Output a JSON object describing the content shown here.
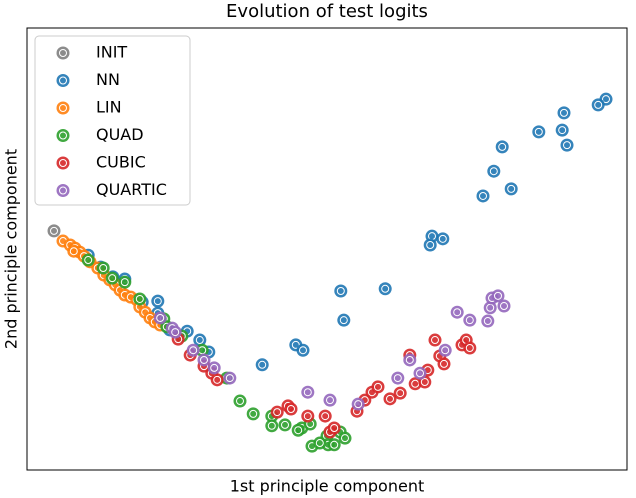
{
  "chart_data": {
    "type": "scatter",
    "title": "Evolution of test logits",
    "x_label": "1st principle component",
    "y_label": "2nd principle component",
    "xlim": [
      0,
      100
    ],
    "ylim": [
      0,
      100
    ],
    "legend": "upper left",
    "series": [
      {
        "name": "INIT",
        "color": "#7f7f7f",
        "x": [
          4.5
        ],
        "values": [
          54.1
        ]
      },
      {
        "name": "NN",
        "color": "#1f77b4",
        "x": [
          96.5,
          95.2,
          89.5,
          85.3,
          89.2,
          90.0,
          79.2,
          77.8,
          80.7,
          76.0,
          67.5,
          69.3,
          67.2,
          52.3,
          59.7,
          52.8,
          44.8,
          46.0,
          39.2,
          28.8,
          30.3,
          26.7,
          23.8,
          21.8,
          21.8,
          19.2,
          16.3,
          14.3,
          12.3,
          10.2
        ],
        "values": [
          83.9,
          82.6,
          80.8,
          76.5,
          76.9,
          73.5,
          73.1,
          67.6,
          63.6,
          62.0,
          52.9,
          52.3,
          50.9,
          40.5,
          41.0,
          33.9,
          28.3,
          27.1,
          23.8,
          29.4,
          26.7,
          31.4,
          31.7,
          38.2,
          35.5,
          38.0,
          43.2,
          43.7,
          45.9,
          48.6
        ]
      },
      {
        "name": "LIN",
        "color": "#ff7f0e",
        "x": [
          6.0,
          7.2,
          8.0,
          8.8,
          9.5,
          7.8,
          10.5,
          11.8,
          12.8,
          13.8,
          14.7,
          15.5,
          16.3,
          17.3,
          18.3,
          18.8,
          19.7,
          20.5,
          21.3,
          22.2
        ],
        "values": [
          51.8,
          50.9,
          50.2,
          49.3,
          48.4,
          49.5,
          47.1,
          45.7,
          44.1,
          43.0,
          41.9,
          40.7,
          39.6,
          39.1,
          38.5,
          36.9,
          35.7,
          34.4,
          33.5,
          32.8
        ]
      },
      {
        "name": "QUAD",
        "color": "#2ca02c",
        "x": [
          10.2,
          12.7,
          14.2,
          16.3,
          18.8,
          22.8,
          23.3,
          25.8,
          29.2,
          33.3,
          35.5,
          37.7,
          40.8,
          40.8,
          43.0,
          45.8,
          45.2,
          47.2,
          50.0,
          52.2,
          53.0,
          50.2,
          47.5,
          51.2,
          48.8
        ],
        "values": [
          47.5,
          45.7,
          43.4,
          42.5,
          38.7,
          34.2,
          32.4,
          30.3,
          27.1,
          20.8,
          15.6,
          12.7,
          12.2,
          10.0,
          10.2,
          9.5,
          9.0,
          10.4,
          7.7,
          8.6,
          7.2,
          5.7,
          5.4,
          5.7,
          6.1
        ]
      },
      {
        "name": "CUBIC",
        "color": "#d62728",
        "x": [
          25.2,
          27.2,
          29.5,
          30.8,
          31.7,
          41.7,
          43.5,
          44.0,
          46.8,
          49.7,
          50.5,
          51.2,
          55.0,
          56.3,
          57.5,
          58.5,
          60.5,
          62.2,
          63.8,
          64.7,
          66.3,
          66.8,
          68.0,
          68.8,
          69.5,
          72.5,
          73.2,
          73.8
        ],
        "values": [
          29.6,
          26.0,
          23.5,
          21.9,
          20.4,
          13.1,
          14.5,
          13.8,
          12.2,
          12.2,
          8.6,
          9.5,
          13.3,
          15.8,
          17.6,
          18.8,
          16.1,
          17.4,
          26.0,
          19.5,
          19.9,
          22.6,
          29.4,
          25.8,
          24.0,
          28.3,
          29.4,
          27.6
        ]
      },
      {
        "name": "QUARTIC",
        "color": "#9467bd",
        "x": [
          22.2,
          24.2,
          24.7,
          27.7,
          29.5,
          31.2,
          33.8,
          46.8,
          50.5,
          55.2,
          61.8,
          63.8,
          65.5,
          69.7,
          71.7,
          73.8,
          76.8,
          77.2,
          77.5,
          78.5,
          79.5
        ],
        "values": [
          34.4,
          32.1,
          31.2,
          27.1,
          24.9,
          23.1,
          20.8,
          17.6,
          15.8,
          14.9,
          20.8,
          24.9,
          21.9,
          27.1,
          35.7,
          33.9,
          33.7,
          36.7,
          38.9,
          39.4,
          37.1
        ]
      }
    ]
  }
}
